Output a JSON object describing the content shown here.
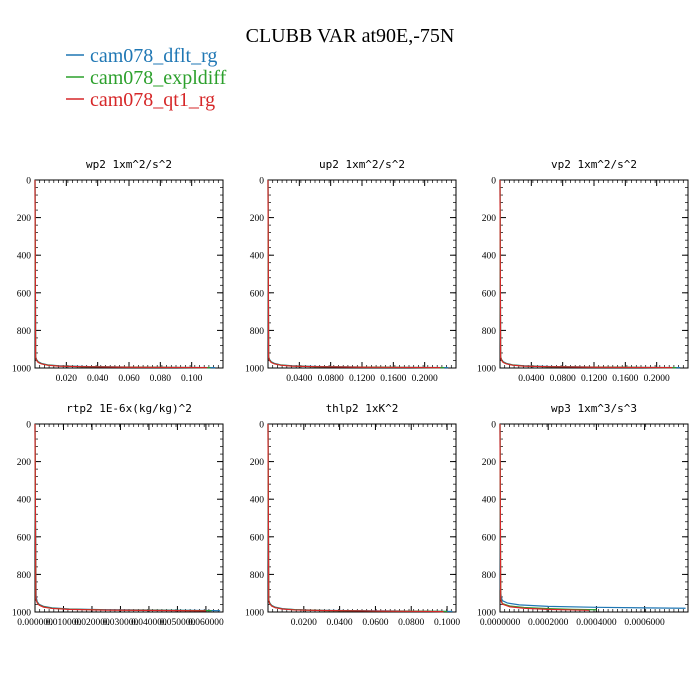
{
  "figure_title": "CLUBB VAR at90E,-75N",
  "legend": [
    {
      "label": "cam078_dflt_rg",
      "color": "#1f77b4"
    },
    {
      "label": "cam078_expldiff",
      "color": "#2ca02c"
    },
    {
      "label": "cam078_qt1_rg",
      "color": "#d62728"
    }
  ],
  "chart_data": [
    {
      "type": "line",
      "title": "wp2   1xm^2/s^2",
      "xlabel": "",
      "ylabel": "",
      "xlim": [
        0,
        0.12
      ],
      "ylim": [
        1000,
        0
      ],
      "x_ticks": [
        0.02,
        0.04,
        0.06,
        0.08,
        0.1
      ],
      "x_tick_labels": [
        "0.020",
        "0.040",
        "0.060",
        "0.080",
        "0.100"
      ],
      "y_ticks": [
        0,
        200,
        400,
        600,
        800,
        1000
      ],
      "y_tick_labels": [
        "0",
        "200",
        "400",
        "600",
        "800",
        "1000"
      ],
      "series": [
        {
          "color": "#1f77b4",
          "x": [
            0.0,
            0.0004,
            0.001,
            0.002,
            0.004,
            0.008,
            0.015,
            0.03,
            0.06,
            0.09,
            0.115
          ],
          "y": [
            0,
            940,
            955,
            966,
            975,
            983,
            988,
            992,
            995,
            997,
            998
          ]
        },
        {
          "color": "#2ca02c",
          "x": [
            0.0,
            0.0004,
            0.001,
            0.002,
            0.004,
            0.008,
            0.015,
            0.03,
            0.06,
            0.09,
            0.112
          ],
          "y": [
            0,
            942,
            957,
            968,
            977,
            984,
            989,
            993,
            995,
            997,
            998
          ]
        },
        {
          "color": "#d62728",
          "x": [
            0.0,
            0.0004,
            0.001,
            0.002,
            0.004,
            0.008,
            0.015,
            0.03,
            0.06,
            0.09,
            0.11
          ],
          "y": [
            0,
            944,
            959,
            970,
            978,
            985,
            990,
            993,
            996,
            997,
            998
          ]
        }
      ]
    },
    {
      "type": "line",
      "title": "up2   1xm^2/s^2",
      "xlabel": "",
      "ylabel": "",
      "xlim": [
        0,
        0.24
      ],
      "ylim": [
        1000,
        0
      ],
      "x_ticks": [
        0.04,
        0.08,
        0.12,
        0.16,
        0.2
      ],
      "x_tick_labels": [
        "0.0400",
        "0.0800",
        "0.1200",
        "0.1600",
        "0.2000"
      ],
      "y_ticks": [
        0,
        200,
        400,
        600,
        800,
        1000
      ],
      "y_tick_labels": [
        "0",
        "200",
        "400",
        "600",
        "800",
        "1000"
      ],
      "series": [
        {
          "color": "#1f77b4",
          "x": [
            0.0,
            0.0008,
            0.002,
            0.004,
            0.008,
            0.016,
            0.03,
            0.06,
            0.12,
            0.18,
            0.23
          ],
          "y": [
            0,
            940,
            955,
            966,
            975,
            983,
            988,
            992,
            995,
            997,
            998
          ]
        },
        {
          "color": "#2ca02c",
          "x": [
            0.0,
            0.0008,
            0.002,
            0.004,
            0.008,
            0.016,
            0.03,
            0.06,
            0.12,
            0.18,
            0.225
          ],
          "y": [
            0,
            942,
            957,
            968,
            977,
            984,
            989,
            993,
            995,
            997,
            998
          ]
        },
        {
          "color": "#d62728",
          "x": [
            0.0,
            0.0008,
            0.002,
            0.004,
            0.008,
            0.016,
            0.03,
            0.06,
            0.12,
            0.18,
            0.22
          ],
          "y": [
            0,
            944,
            959,
            970,
            978,
            985,
            990,
            993,
            996,
            997,
            998
          ]
        }
      ]
    },
    {
      "type": "line",
      "title": "vp2   1xm^2/s^2",
      "xlabel": "",
      "ylabel": "",
      "xlim": [
        0,
        0.24
      ],
      "ylim": [
        1000,
        0
      ],
      "x_ticks": [
        0.04,
        0.08,
        0.12,
        0.16,
        0.2
      ],
      "x_tick_labels": [
        "0.0400",
        "0.0800",
        "0.1200",
        "0.1600",
        "0.2000"
      ],
      "y_ticks": [
        0,
        200,
        400,
        600,
        800,
        1000
      ],
      "y_tick_labels": [
        "0",
        "200",
        "400",
        "600",
        "800",
        "1000"
      ],
      "series": [
        {
          "color": "#1f77b4",
          "x": [
            0.0,
            0.0008,
            0.002,
            0.004,
            0.008,
            0.016,
            0.03,
            0.06,
            0.12,
            0.18,
            0.23
          ],
          "y": [
            0,
            940,
            955,
            966,
            975,
            983,
            988,
            992,
            995,
            997,
            998
          ]
        },
        {
          "color": "#2ca02c",
          "x": [
            0.0,
            0.0008,
            0.002,
            0.004,
            0.008,
            0.016,
            0.03,
            0.06,
            0.12,
            0.18,
            0.225
          ],
          "y": [
            0,
            942,
            957,
            968,
            977,
            984,
            989,
            993,
            995,
            997,
            998
          ]
        },
        {
          "color": "#d62728",
          "x": [
            0.0,
            0.0008,
            0.002,
            0.004,
            0.008,
            0.016,
            0.03,
            0.06,
            0.12,
            0.18,
            0.22
          ],
          "y": [
            0,
            944,
            959,
            970,
            978,
            985,
            990,
            993,
            996,
            997,
            998
          ]
        }
      ]
    },
    {
      "type": "line",
      "title": "rtp2   1E-6x(kg/kg)^2",
      "xlabel": "",
      "ylabel": "",
      "xlim": [
        0,
        0.066
      ],
      "ylim": [
        1000,
        0
      ],
      "x_ticks": [
        0.0,
        0.01,
        0.02,
        0.03,
        0.04,
        0.05,
        0.06
      ],
      "x_tick_labels": [
        "0.000000",
        "0.010000",
        "0.020000",
        "0.030000",
        "0.040000",
        "0.050000",
        "0.060000"
      ],
      "y_ticks": [
        0,
        200,
        400,
        600,
        800,
        1000
      ],
      "y_tick_labels": [
        "0",
        "200",
        "400",
        "600",
        "800",
        "1000"
      ],
      "series": [
        {
          "color": "#1f77b4",
          "x": [
            0.0,
            0.0001,
            0.0002,
            0.0004,
            0.0008,
            0.0015,
            0.003,
            0.006,
            0.012,
            0.025,
            0.045,
            0.06,
            0.065
          ],
          "y": [
            0,
            470,
            560,
            920,
            945,
            960,
            970,
            978,
            984,
            988,
            990,
            992,
            993
          ]
        },
        {
          "color": "#2ca02c",
          "x": [
            0.0,
            0.0003,
            0.0008,
            0.0015,
            0.003,
            0.006,
            0.012,
            0.025,
            0.045,
            0.062
          ],
          "y": [
            0,
            930,
            950,
            962,
            972,
            980,
            985,
            989,
            991,
            993
          ]
        },
        {
          "color": "#d62728",
          "x": [
            0.0,
            0.0003,
            0.0008,
            0.0015,
            0.003,
            0.006,
            0.012,
            0.025,
            0.045,
            0.06
          ],
          "y": [
            0,
            932,
            952,
            964,
            974,
            981,
            986,
            990,
            992,
            994
          ]
        }
      ]
    },
    {
      "type": "line",
      "title": "thlp2   1xK^2",
      "xlabel": "",
      "ylabel": "",
      "xlim": [
        0,
        0.105
      ],
      "ylim": [
        1000,
        0
      ],
      "x_ticks": [
        0.02,
        0.04,
        0.06,
        0.08,
        0.1
      ],
      "x_tick_labels": [
        "0.0200",
        "0.0400",
        "0.0600",
        "0.0800",
        "0.1000"
      ],
      "y_ticks": [
        0,
        200,
        400,
        600,
        800,
        1000
      ],
      "y_tick_labels": [
        "0",
        "200",
        "400",
        "600",
        "800",
        "1000"
      ],
      "series": [
        {
          "color": "#1f77b4",
          "x": [
            0.0,
            0.0004,
            0.001,
            0.002,
            0.004,
            0.008,
            0.015,
            0.03,
            0.06,
            0.09,
            0.103
          ],
          "y": [
            0,
            935,
            952,
            964,
            974,
            982,
            987,
            991,
            994,
            996,
            997
          ]
        },
        {
          "color": "#2ca02c",
          "x": [
            0.0,
            0.0004,
            0.001,
            0.002,
            0.004,
            0.008,
            0.015,
            0.03,
            0.06,
            0.09,
            0.1
          ],
          "y": [
            0,
            937,
            954,
            966,
            976,
            983,
            988,
            992,
            995,
            996,
            997
          ]
        },
        {
          "color": "#d62728",
          "x": [
            0.0,
            0.0004,
            0.001,
            0.002,
            0.004,
            0.008,
            0.015,
            0.03,
            0.06,
            0.09,
            0.098
          ],
          "y": [
            0,
            939,
            956,
            968,
            977,
            984,
            989,
            992,
            995,
            997,
            998
          ]
        }
      ]
    },
    {
      "type": "line",
      "title": "wp3   1xm^3/s^3",
      "xlabel": "",
      "ylabel": "",
      "xlim": [
        0,
        0.00078
      ],
      "ylim": [
        1000,
        0
      ],
      "x_ticks": [
        0.0,
        0.0002,
        0.0004,
        0.0006
      ],
      "x_tick_labels": [
        "0.0000000",
        "0.0002000",
        "0.0004000",
        "0.0006000"
      ],
      "y_ticks": [
        0,
        200,
        400,
        600,
        800,
        1000
      ],
      "y_tick_labels": [
        "0",
        "200",
        "400",
        "600",
        "800",
        "1000"
      ],
      "series": [
        {
          "color": "#1f77b4",
          "x": [
            0.0,
            2e-06,
            5e-06,
            1e-05,
            3e-05,
            8e-05,
            0.0002,
            0.0004,
            0.0006,
            0.00077
          ],
          "y": [
            0,
            880,
            920,
            940,
            952,
            962,
            970,
            975,
            978,
            980
          ]
        },
        {
          "color": "#2ca02c",
          "x": [
            0.0,
            3e-06,
            1e-05,
            4e-05,
            0.0001,
            0.0002,
            0.0003,
            0.0004
          ],
          "y": [
            0,
            930,
            955,
            968,
            976,
            982,
            986,
            988
          ]
        },
        {
          "color": "#d62728",
          "x": [
            0.0,
            3e-06,
            1e-05,
            4e-05,
            0.0001,
            0.0002,
            0.0003,
            0.00037
          ],
          "y": [
            0,
            935,
            958,
            972,
            980,
            986,
            989,
            991
          ]
        }
      ]
    }
  ]
}
